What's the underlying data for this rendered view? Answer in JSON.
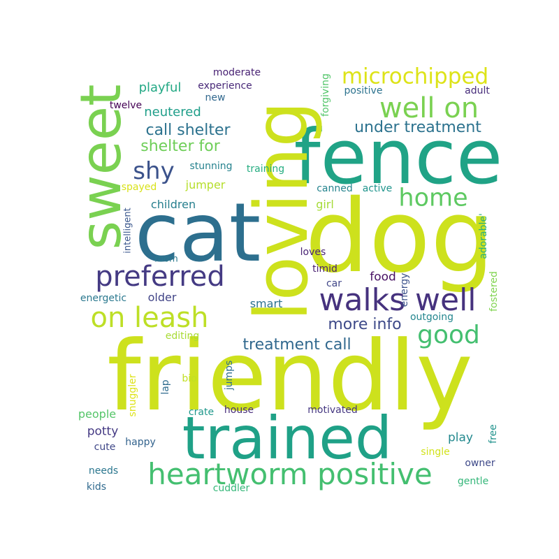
{
  "words": [
    {
      "text": "friendly",
      "color": "#cde11d"
    },
    {
      "text": "dog",
      "color": "#cde11d"
    },
    {
      "text": "fence",
      "color": "#20a386"
    },
    {
      "text": "cat",
      "color": "#2d6f8e"
    },
    {
      "text": "loving",
      "color": "#cde11d"
    },
    {
      "text": "sweet",
      "color": "#7ad151"
    },
    {
      "text": "trained",
      "color": "#1fa187"
    },
    {
      "text": "heartworm positive",
      "color": "#44bf70"
    },
    {
      "text": "walks well",
      "color": "#46327e"
    },
    {
      "text": "on leash",
      "color": "#bddf26"
    },
    {
      "text": "preferred",
      "color": "#443a83"
    },
    {
      "text": "well on",
      "color": "#7ad151"
    },
    {
      "text": "microchipped",
      "color": "#dde318"
    },
    {
      "text": "home",
      "color": "#5ec962"
    },
    {
      "text": "good",
      "color": "#44bf70"
    },
    {
      "text": "shy",
      "color": "#3b528b"
    },
    {
      "text": "treatment call",
      "color": "#31688e"
    },
    {
      "text": "more info",
      "color": "#3e4a89"
    },
    {
      "text": "under treatment",
      "color": "#2c728e"
    },
    {
      "text": "call shelter",
      "color": "#2c728e"
    },
    {
      "text": "shelter for",
      "color": "#6ece58"
    },
    {
      "text": "neutered",
      "color": "#1f9e89"
    },
    {
      "text": "playful",
      "color": "#22a884"
    },
    {
      "text": "experience",
      "color": "#482878"
    },
    {
      "text": "moderate",
      "color": "#482173"
    },
    {
      "text": "new",
      "color": "#31688e"
    },
    {
      "text": "twelve",
      "color": "#440154"
    },
    {
      "text": "forgiving",
      "color": "#52c569"
    },
    {
      "text": "positive",
      "color": "#2c728e"
    },
    {
      "text": "adult",
      "color": "#472d7b"
    },
    {
      "text": "stunning",
      "color": "#26828e"
    },
    {
      "text": "training",
      "color": "#26ad81"
    },
    {
      "text": "jumper",
      "color": "#b5de2b"
    },
    {
      "text": "spayed",
      "color": "#d8e219"
    },
    {
      "text": "canned",
      "color": "#25848e"
    },
    {
      "text": "active",
      "color": "#1f948c"
    },
    {
      "text": "girl",
      "color": "#a5db36"
    },
    {
      "text": "children",
      "color": "#277f8e"
    },
    {
      "text": "intelligent",
      "color": "#39568c"
    },
    {
      "text": "adorable'",
      "color": "#29af7f"
    },
    {
      "text": "loves",
      "color": "#482374"
    },
    {
      "text": "room",
      "color": "#2a788e"
    },
    {
      "text": "timid",
      "color": "#481f70"
    },
    {
      "text": "food",
      "color": "#471063"
    },
    {
      "text": "car",
      "color": "#404688"
    },
    {
      "text": "energy",
      "color": "#3b528b"
    },
    {
      "text": "fostered",
      "color": "#7fd34e"
    },
    {
      "text": "older",
      "color": "#414487"
    },
    {
      "text": "energetic",
      "color": "#2a788e"
    },
    {
      "text": "smart",
      "color": "#2c728e"
    },
    {
      "text": "outgoing",
      "color": "#24868e"
    },
    {
      "text": "editing",
      "color": "#a8db34"
    },
    {
      "text": "snuggler",
      "color": "#dde318"
    },
    {
      "text": "lap",
      "color": "#2f6c8e"
    },
    {
      "text": "bio",
      "color": "#c2df23"
    },
    {
      "text": "jumps",
      "color": "#2e6e8e"
    },
    {
      "text": "people",
      "color": "#54c568"
    },
    {
      "text": "crate",
      "color": "#1f988b"
    },
    {
      "text": "house",
      "color": "#472c7a"
    },
    {
      "text": "motivated",
      "color": "#453781"
    },
    {
      "text": "potty",
      "color": "#443983"
    },
    {
      "text": "free",
      "color": "#20928c"
    },
    {
      "text": "play",
      "color": "#23898e"
    },
    {
      "text": "cute",
      "color": "#3f4788"
    },
    {
      "text": "happy",
      "color": "#33638d"
    },
    {
      "text": "single",
      "color": "#d2e21b"
    },
    {
      "text": "needs",
      "color": "#2a768e"
    },
    {
      "text": "owner",
      "color": "#3e4989"
    },
    {
      "text": "kids",
      "color": "#306a8e"
    },
    {
      "text": "cuddler",
      "color": "#35b779"
    },
    {
      "text": "gentle",
      "color": "#34b679"
    }
  ]
}
